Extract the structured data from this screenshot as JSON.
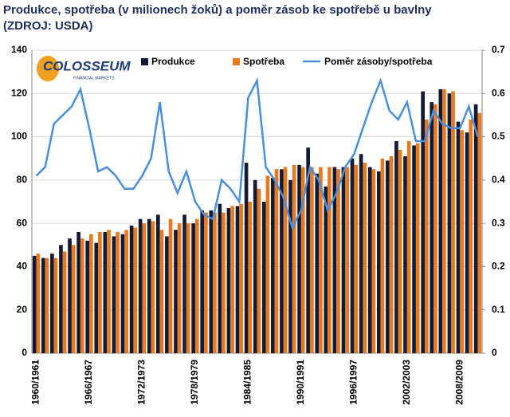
{
  "chart_data": {
    "type": "bar-line",
    "title": "Produkce, spotřeba (v milionech žoků) a poměr zásob ke spotřebě u bavlny",
    "subtitle": "(ZDROJ: USDA)",
    "logo": "COLOSSEUM",
    "logo_sub": "FINANCIAL MARKETS",
    "categories": [
      "1960/1961",
      null,
      null,
      null,
      null,
      null,
      "1966/1967",
      null,
      null,
      null,
      null,
      null,
      "1972/1973",
      null,
      null,
      null,
      null,
      null,
      "1978/1979",
      null,
      null,
      null,
      null,
      null,
      "1984/1985",
      null,
      null,
      null,
      null,
      null,
      "1990/1991",
      null,
      null,
      null,
      null,
      null,
      "1996/1997",
      null,
      null,
      null,
      null,
      null,
      "2002/2003",
      null,
      null,
      null,
      null,
      null,
      "2008/2009",
      null,
      null
    ],
    "series": [
      {
        "name": "Produkce",
        "color": "#141a33",
        "kind": "bar",
        "values": [
          45,
          44,
          46,
          50,
          53,
          56,
          52,
          51,
          56,
          54,
          55,
          59,
          62,
          62,
          64,
          54,
          57,
          64,
          60,
          66,
          66,
          69,
          67,
          68,
          88,
          80,
          70,
          81,
          85,
          80,
          87,
          95,
          83,
          77,
          86,
          86,
          90,
          92,
          86,
          84,
          89,
          98,
          91,
          96,
          121,
          116,
          122,
          120,
          107,
          102,
          115
        ]
      },
      {
        "name": "Spotřeba",
        "color": "#e8791f",
        "kind": "bar",
        "values": [
          46,
          44,
          44,
          47,
          50,
          53,
          55,
          56,
          57,
          56,
          57,
          58,
          60,
          61,
          57,
          62,
          60,
          60,
          62,
          65,
          65,
          65,
          68,
          69,
          70,
          76,
          82,
          85,
          86,
          87,
          86,
          86,
          86,
          86,
          85,
          86,
          87,
          88,
          85,
          90,
          91,
          94,
          98,
          97,
          108,
          115,
          122,
          121,
          103,
          108,
          111
        ]
      },
      {
        "name": "Poměr zásoby/spotřeba",
        "color": "#4a8fdc",
        "kind": "line",
        "axis": "y2",
        "values": [
          0.41,
          0.43,
          0.53,
          0.55,
          0.57,
          0.61,
          0.52,
          0.42,
          0.43,
          0.41,
          0.38,
          0.38,
          0.41,
          0.45,
          0.58,
          0.42,
          0.37,
          0.42,
          0.35,
          0.32,
          0.31,
          0.4,
          0.38,
          0.35,
          0.59,
          0.63,
          0.43,
          0.4,
          0.36,
          0.29,
          0.33,
          0.43,
          0.4,
          0.33,
          0.37,
          0.43,
          0.46,
          0.52,
          0.58,
          0.63,
          0.56,
          0.54,
          0.58,
          0.49,
          0.49,
          0.56,
          0.53,
          0.52,
          0.52,
          0.57,
          0.5
        ]
      }
    ],
    "ylim": [
      0,
      140
    ],
    "yticks": [
      0,
      20,
      40,
      60,
      80,
      100,
      120,
      140
    ],
    "y2lim": [
      0,
      0.7
    ],
    "y2ticks": [
      0,
      0.1,
      0.2,
      0.3,
      0.4,
      0.5,
      0.6,
      0.7
    ],
    "grid": true
  }
}
